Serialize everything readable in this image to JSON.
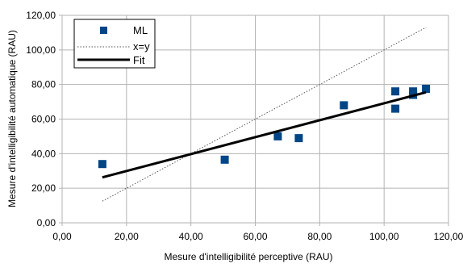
{
  "chart_data": {
    "type": "scatter",
    "xlabel": "Mesure d'intelligibilité perceptive (RAU)",
    "ylabel": "Mesure d'intelligibilité automatique (RAU)",
    "xlim": [
      0,
      120
    ],
    "ylim": [
      0,
      120
    ],
    "x_ticks": [
      "0,00",
      "20,00",
      "40,00",
      "60,00",
      "80,00",
      "100,00",
      "120,00"
    ],
    "y_ticks": [
      "0,00",
      "20,00",
      "40,00",
      "60,00",
      "80,00",
      "100,00",
      "120,00"
    ],
    "grid": true,
    "legend_position": "top-left",
    "series": [
      {
        "name": "ML",
        "kind": "scatter",
        "marker": "square",
        "color": "#004586",
        "points": [
          [
            12.5,
            34.0
          ],
          [
            50.5,
            36.5
          ],
          [
            67.0,
            50.0
          ],
          [
            73.5,
            49.0
          ],
          [
            87.5,
            68.0
          ],
          [
            103.5,
            76.0
          ],
          [
            103.5,
            66.0
          ],
          [
            109.0,
            76.0
          ],
          [
            109.0,
            74.0
          ],
          [
            113.0,
            77.5
          ]
        ]
      },
      {
        "name": "x=y",
        "kind": "line",
        "style": "dotted",
        "color": "#555555",
        "points": [
          [
            12.5,
            12.5
          ],
          [
            113.0,
            113.0
          ]
        ]
      },
      {
        "name": "Fit",
        "kind": "line",
        "style": "solid",
        "color": "#000000",
        "points": [
          [
            12.5,
            26.3
          ],
          [
            113.0,
            75.5
          ]
        ]
      }
    ]
  }
}
